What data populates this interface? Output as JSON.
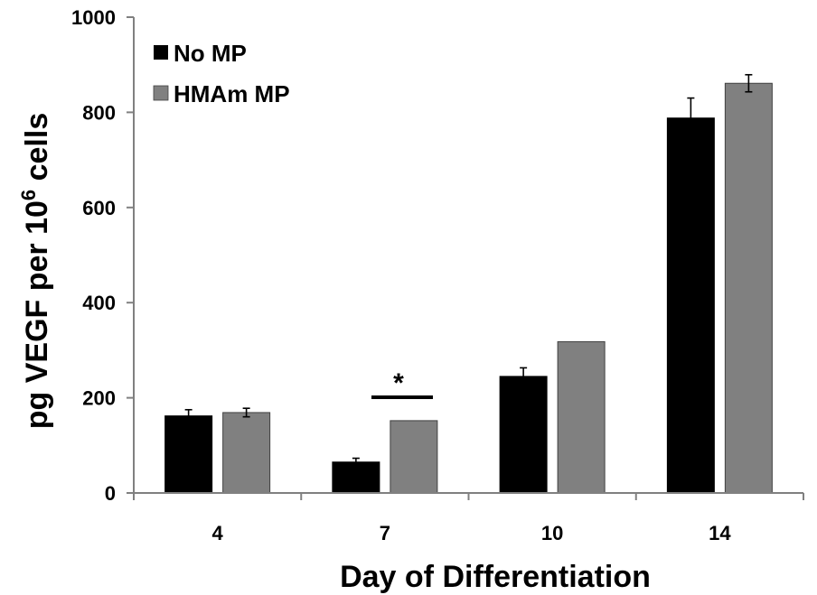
{
  "chart_data": {
    "type": "bar",
    "categories": [
      "4",
      "7",
      "10",
      "14"
    ],
    "series": [
      {
        "name": "No MP",
        "color": "#000000",
        "values": [
          162,
          65,
          245,
          788
        ],
        "errors": [
          13,
          8,
          18,
          42
        ]
      },
      {
        "name": "HMAm MP",
        "color": "#808080",
        "values": [
          169,
          152,
          318,
          861
        ],
        "errors": [
          9,
          null,
          null,
          18
        ]
      }
    ],
    "xlabel": "Day of Differentiation",
    "ylabel": {
      "main": "pg VEGF per 10",
      "superscript": "6",
      "suffix": " cells"
    },
    "ylim": [
      0,
      1000
    ],
    "yticks": [
      "0",
      "200",
      "400",
      "600",
      "800",
      "1000"
    ],
    "legend_placement": "top-left",
    "grid": false,
    "annotations": [
      {
        "text": "*",
        "category": "7",
        "type": "significance"
      }
    ]
  }
}
